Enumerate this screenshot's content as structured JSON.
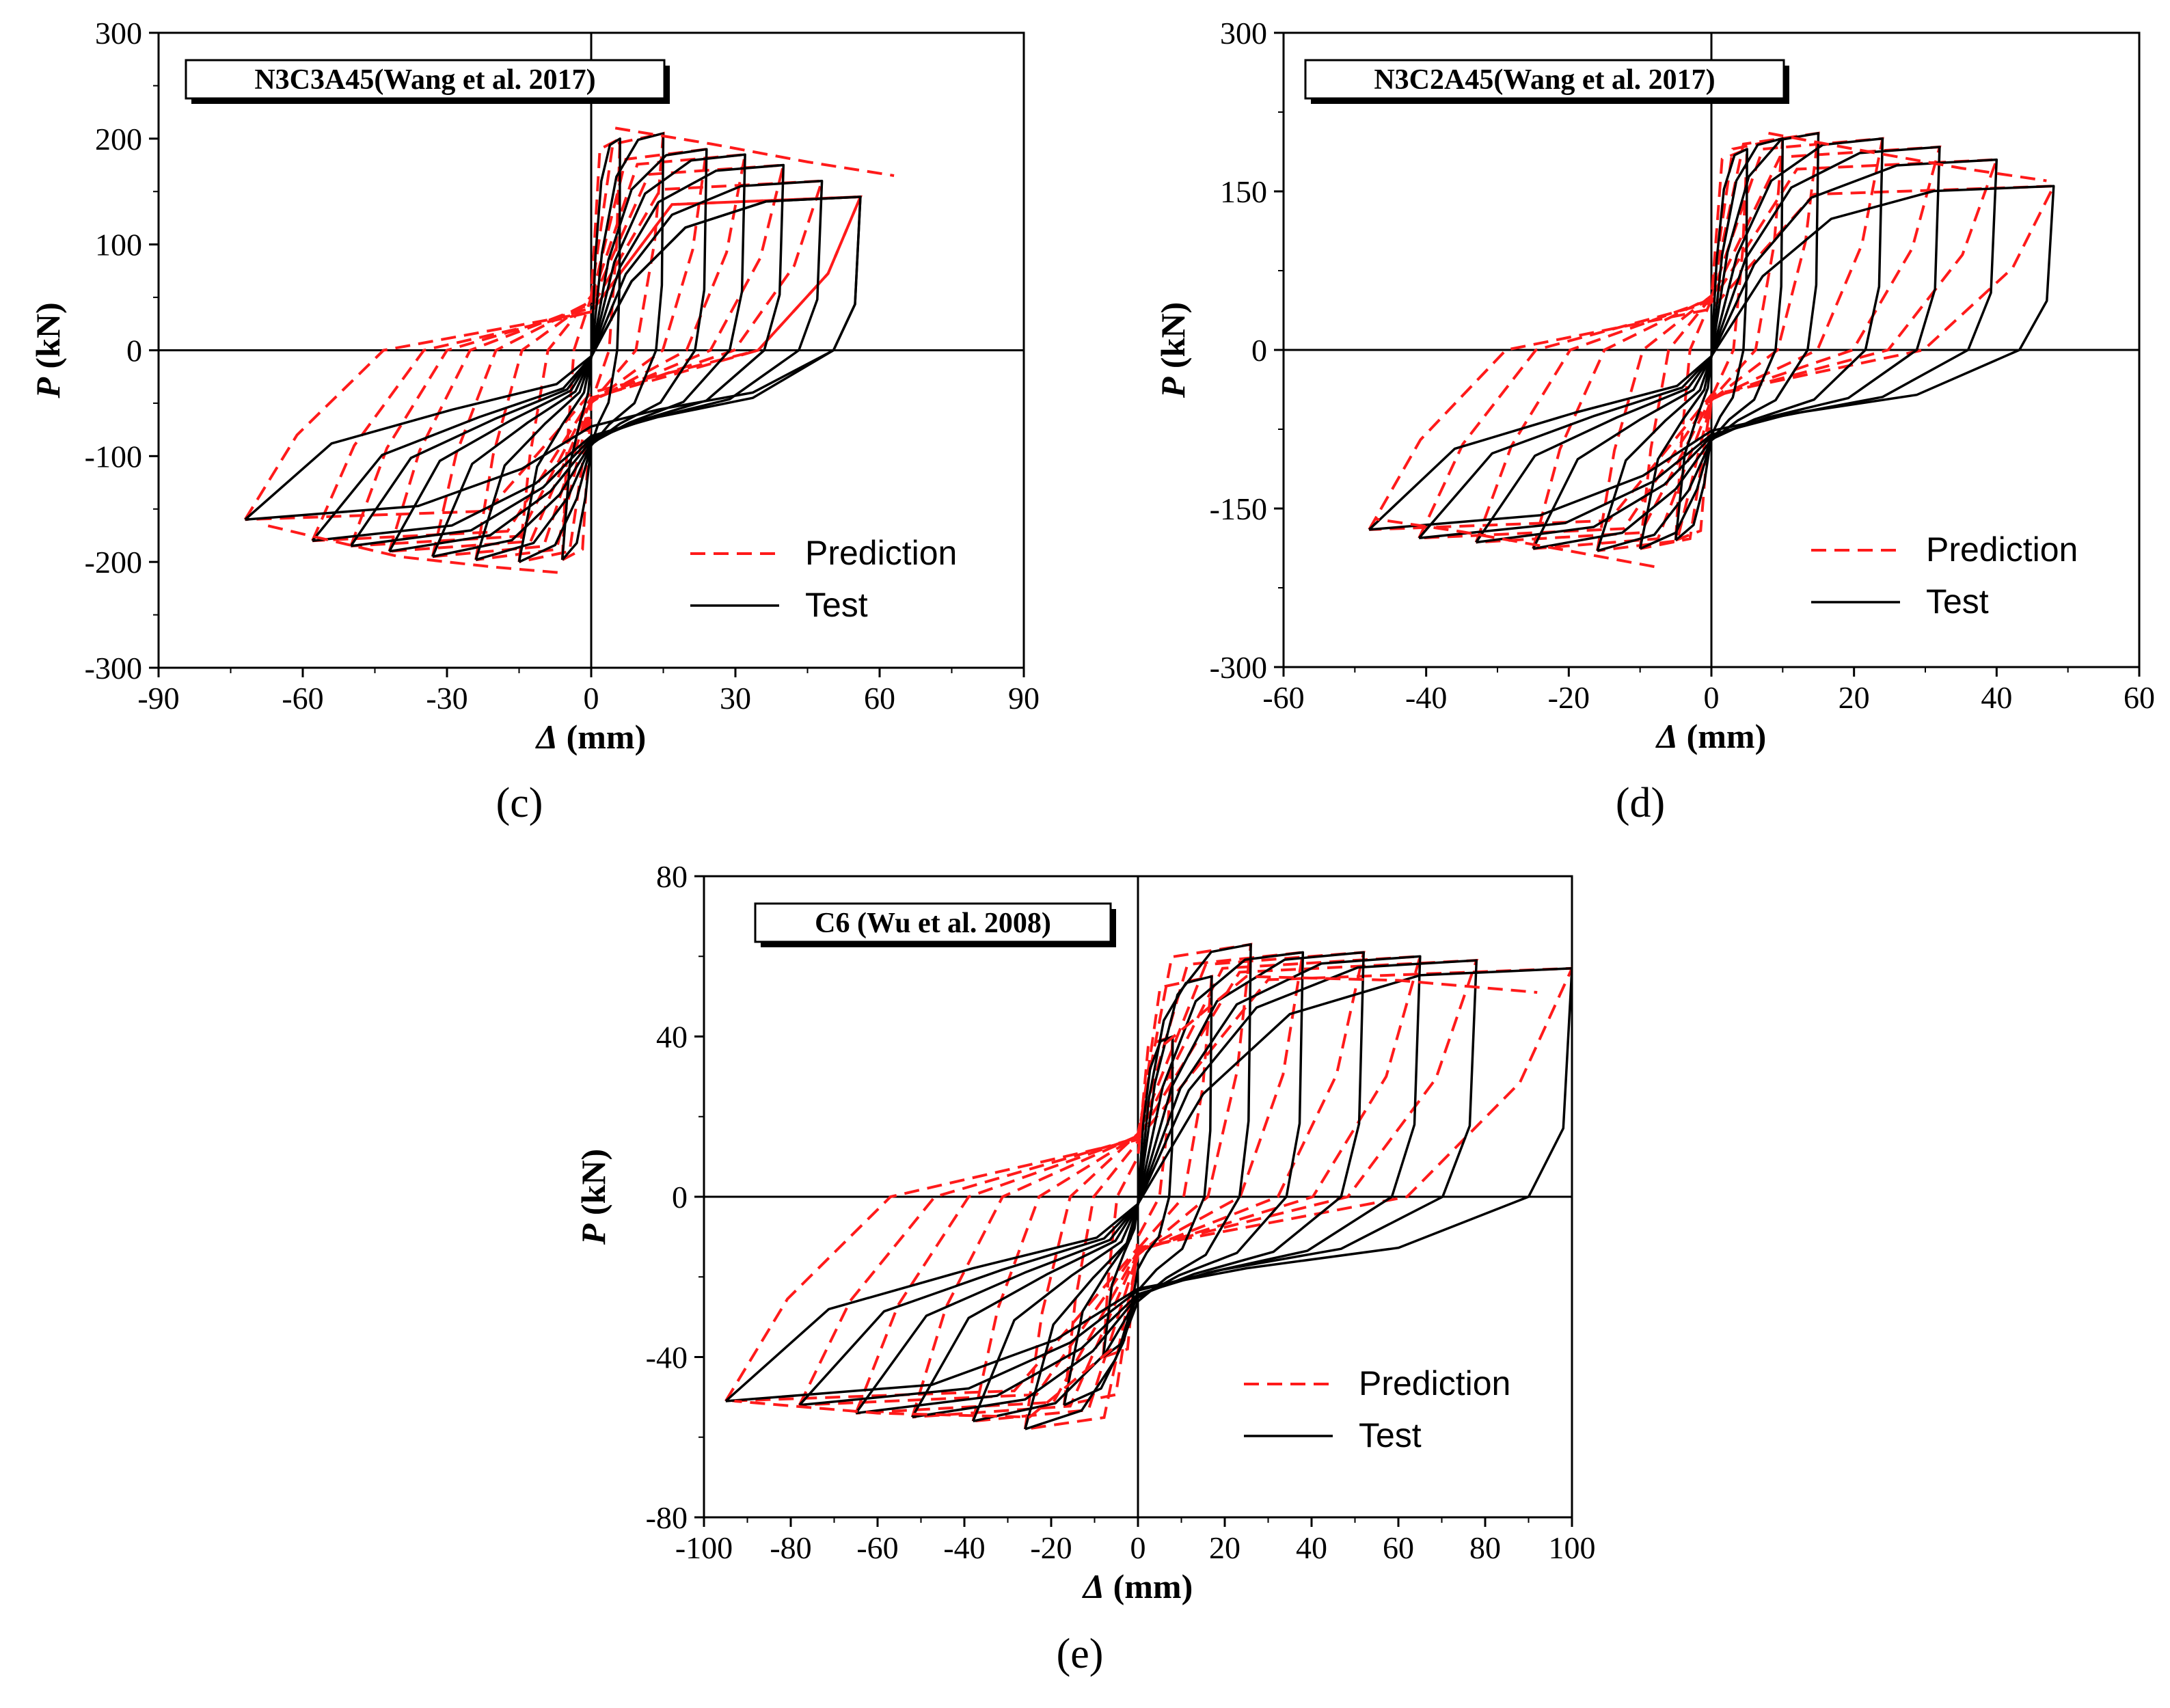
{
  "chart_data": [
    {
      "type": "line",
      "title": "N3C3A45(Wang et al. 2017)",
      "panel_label": "(c)",
      "xlabel": "Δ (mm)",
      "ylabel": "P (kN)",
      "xlabel_symbol": "Δ",
      "xlabel_unit": " (mm)",
      "ylabel_symbol": "P",
      "ylabel_unit": " (kN)",
      "xlim": [
        -90,
        90
      ],
      "ylim": [
        -300,
        300
      ],
      "xticks": [
        -90,
        -60,
        -30,
        0,
        30,
        60,
        90
      ],
      "yticks": [
        -300,
        -200,
        -100,
        0,
        100,
        200,
        300
      ],
      "legend": [
        "Prediction",
        "Test"
      ],
      "legend_position": "bottom-right",
      "cycles": [
        {
          "peak_pos": [
            6,
            200
          ],
          "peak_neg": [
            -6,
            -198
          ]
        },
        {
          "peak_pos": [
            15,
            205
          ],
          "peak_neg": [
            -15,
            -200
          ]
        },
        {
          "peak_pos": [
            24,
            190
          ],
          "peak_neg": [
            -24,
            -198
          ]
        },
        {
          "peak_pos": [
            32,
            185
          ],
          "peak_neg": [
            -33,
            -195
          ]
        },
        {
          "peak_pos": [
            40,
            175
          ],
          "peak_neg": [
            -42,
            -190
          ]
        },
        {
          "peak_pos": [
            48,
            160
          ],
          "peak_neg": [
            -50,
            -185
          ]
        },
        {
          "peak_pos": [
            56,
            145
          ],
          "peak_neg": [
            -58,
            -180
          ]
        },
        {
          "peak_pos": [
            56,
            145
          ],
          "peak_neg": [
            -72,
            -160
          ]
        }
      ],
      "prediction_envelope": {
        "pos": [
          [
            5,
            210
          ],
          [
            25,
            195
          ],
          [
            45,
            178
          ],
          [
            63,
            165
          ]
        ],
        "neg": [
          [
            -7,
            -210
          ],
          [
            -20,
            -205
          ],
          [
            -40,
            -195
          ],
          [
            -68,
            -165
          ]
        ]
      }
    },
    {
      "type": "line",
      "title": "N3C2A45(Wang et al. 2017)",
      "panel_label": "(d)",
      "xlabel": "Δ (mm)",
      "ylabel": "P (kN)",
      "xlabel_symbol": "Δ",
      "xlabel_unit": " (mm)",
      "ylabel_symbol": "P",
      "ylabel_unit": " (kN)",
      "xlim": [
        -60,
        60
      ],
      "ylim": [
        -300,
        300
      ],
      "xticks": [
        -60,
        -40,
        -20,
        0,
        20,
        40,
        60
      ],
      "yticks": [
        -300,
        -150,
        0,
        150,
        300
      ],
      "legend": [
        "Prediction",
        "Test"
      ],
      "legend_position": "bottom-right",
      "cycles": [
        {
          "peak_pos": [
            5,
            190
          ],
          "peak_neg": [
            -5,
            -180
          ]
        },
        {
          "peak_pos": [
            10,
            200
          ],
          "peak_neg": [
            -10,
            -188
          ]
        },
        {
          "peak_pos": [
            15,
            205
          ],
          "peak_neg": [
            -16,
            -190
          ]
        },
        {
          "peak_pos": [
            24,
            200
          ],
          "peak_neg": [
            -25,
            -188
          ]
        },
        {
          "peak_pos": [
            32,
            192
          ],
          "peak_neg": [
            -33,
            -182
          ]
        },
        {
          "peak_pos": [
            40,
            180
          ],
          "peak_neg": [
            -41,
            -178
          ]
        },
        {
          "peak_pos": [
            48,
            155
          ],
          "peak_neg": [
            -48,
            -170
          ]
        }
      ],
      "prediction_envelope": {
        "pos": [
          [
            8,
            205
          ],
          [
            20,
            190
          ],
          [
            35,
            172
          ],
          [
            47,
            160
          ]
        ],
        "neg": [
          [
            -8,
            -205
          ],
          [
            -20,
            -190
          ],
          [
            -35,
            -172
          ],
          [
            -47,
            -160
          ]
        ]
      }
    },
    {
      "type": "line",
      "title": "C6 (Wu et al. 2008)",
      "panel_label": "(e)",
      "xlabel": "Δ (mm)",
      "ylabel": "P (kN)",
      "xlabel_symbol": "Δ",
      "xlabel_unit": " (mm)",
      "ylabel_symbol": "P",
      "ylabel_unit": " (kN)",
      "xlim": [
        -100,
        100
      ],
      "ylim": [
        -80,
        80
      ],
      "xticks": [
        -100,
        -80,
        -60,
        -40,
        -20,
        0,
        20,
        40,
        60,
        80,
        100
      ],
      "yticks": [
        -80,
        -40,
        0,
        40,
        80
      ],
      "legend": [
        "Prediction",
        "Test"
      ],
      "legend_position": "bottom-right",
      "cycles": [
        {
          "peak_pos": [
            8,
            40
          ],
          "peak_neg": [
            -8,
            -40
          ]
        },
        {
          "peak_pos": [
            17,
            55
          ],
          "peak_neg": [
            -17,
            -52
          ]
        },
        {
          "peak_pos": [
            26,
            63
          ],
          "peak_neg": [
            -26,
            -58
          ]
        },
        {
          "peak_pos": [
            38,
            61
          ],
          "peak_neg": [
            -38,
            -56
          ]
        },
        {
          "peak_pos": [
            52,
            61
          ],
          "peak_neg": [
            -52,
            -55
          ]
        },
        {
          "peak_pos": [
            65,
            60
          ],
          "peak_neg": [
            -65,
            -54
          ]
        },
        {
          "peak_pos": [
            78,
            59
          ],
          "peak_neg": [
            -78,
            -52
          ]
        },
        {
          "peak_pos": [
            100,
            57
          ],
          "peak_neg": [
            -95,
            -51
          ]
        }
      ],
      "prediction_envelope": {
        "pos": [
          [
            6,
            38
          ],
          [
            25,
            55
          ],
          [
            60,
            54
          ],
          [
            92,
            51
          ]
        ],
        "neg": [
          [
            -6,
            -38
          ],
          [
            -25,
            -55
          ],
          [
            -60,
            -54
          ],
          [
            -93,
            -51
          ]
        ]
      }
    }
  ],
  "colors": {
    "prediction": "#ff1a1a",
    "test": "#000000"
  }
}
